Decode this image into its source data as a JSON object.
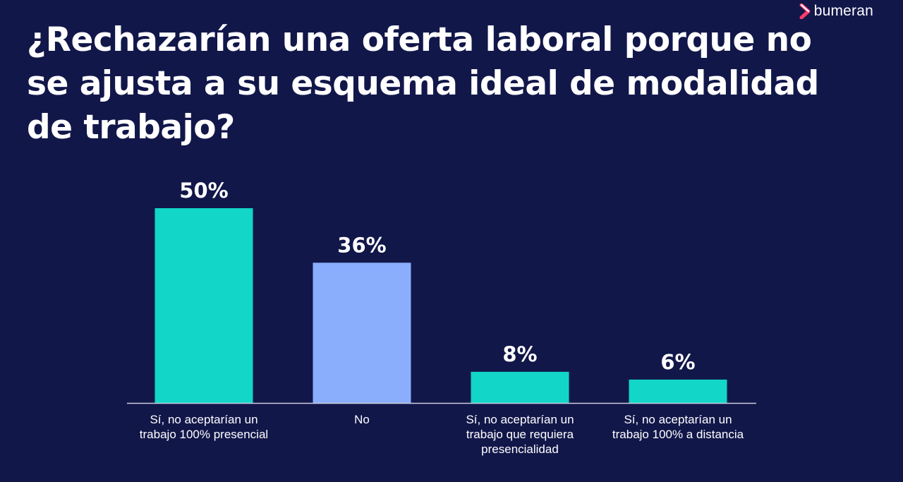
{
  "brand": {
    "name": "bumeran",
    "colors": {
      "accent": "#ff3b6b",
      "mark": "#ffffff"
    }
  },
  "title": "¿Rechazarían una oferta laboral porque no se ajusta a su esquema ideal de modalidad de trabajo?",
  "chart_data": {
    "type": "bar",
    "categories": [
      "Sí, no aceptarían un trabajo 100% presencial",
      "No",
      "Sí, no aceptarían un trabajo que requiera presencialidad",
      "Sí, no aceptarían un trabajo 100% a distancia"
    ],
    "values": [
      50,
      36,
      8,
      6
    ],
    "data_labels": [
      "50%",
      "36%",
      "8%",
      "6%"
    ],
    "bar_colors": [
      "#11d6c8",
      "#8aaefc",
      "#11d6c8",
      "#11d6c8"
    ],
    "ylim": [
      0,
      50
    ],
    "title": "",
    "xlabel": "",
    "ylabel": "",
    "grid": false,
    "legend": "none"
  },
  "colors": {
    "background": "#12174a",
    "baseline": "#c9cde0",
    "text": "#ffffff"
  }
}
